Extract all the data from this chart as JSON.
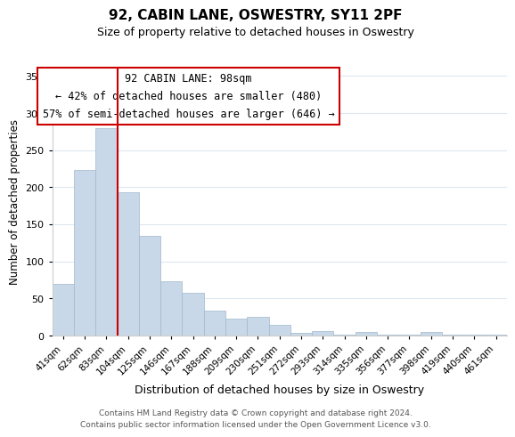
{
  "title": "92, CABIN LANE, OSWESTRY, SY11 2PF",
  "subtitle": "Size of property relative to detached houses in Oswestry",
  "xlabel": "Distribution of detached houses by size in Oswestry",
  "ylabel": "Number of detached properties",
  "bar_labels": [
    "41sqm",
    "62sqm",
    "83sqm",
    "104sqm",
    "125sqm",
    "146sqm",
    "167sqm",
    "188sqm",
    "209sqm",
    "230sqm",
    "251sqm",
    "272sqm",
    "293sqm",
    "314sqm",
    "335sqm",
    "356sqm",
    "377sqm",
    "398sqm",
    "419sqm",
    "440sqm",
    "461sqm"
  ],
  "bar_values": [
    70,
    223,
    280,
    193,
    135,
    73,
    58,
    34,
    23,
    25,
    15,
    4,
    6,
    1,
    5,
    1,
    1,
    5,
    1,
    1,
    1
  ],
  "bar_color": "#c8d8e8",
  "bar_edgecolor": "#a0b8cc",
  "vline_x_index": 2.5,
  "vline_color": "#cc0000",
  "ylim": [
    0,
    360
  ],
  "yticks": [
    0,
    50,
    100,
    150,
    200,
    250,
    300,
    350
  ],
  "annotation_text": "92 CABIN LANE: 98sqm\n← 42% of detached houses are smaller (480)\n57% of semi-detached houses are larger (646) →",
  "annotation_box_edgecolor": "#cc0000",
  "footer_line1": "Contains HM Land Registry data © Crown copyright and database right 2024.",
  "footer_line2": "Contains public sector information licensed under the Open Government Licence v3.0.",
  "background_color": "#ffffff",
  "grid_color": "#dce8f0"
}
